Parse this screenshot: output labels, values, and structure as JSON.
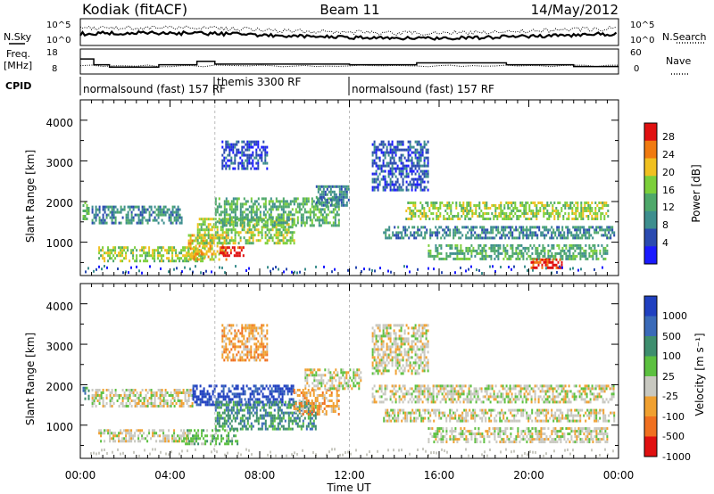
{
  "header": {
    "station": "Kodiak (fitACF)",
    "beam": "Beam 11",
    "date": "14/May/2012"
  },
  "noise_panel": {
    "left_label": "N.Sky",
    "right_label": "N.Search",
    "y_ticks": [
      "10^5",
      "10^0"
    ],
    "y_ticks_right": [
      "10^5",
      "10^0"
    ]
  },
  "freq_panel": {
    "left_label": "Freq.",
    "left_unit": "[MHz]",
    "right_label": "Nave",
    "y_ticks": [
      "18",
      "8"
    ],
    "y_ticks_right": [
      "60",
      "0"
    ]
  },
  "cpid": {
    "label": "CPID",
    "segments": [
      {
        "start_hr": 0.0,
        "end_hr": 6.0,
        "text": "normalsound (fast) 157 RF"
      },
      {
        "start_hr": 6.0,
        "end_hr": 12.0,
        "text": "themis 3300 RF"
      },
      {
        "start_hr": 12.0,
        "end_hr": 24.0,
        "text": "normalsound (fast) 157 RF"
      }
    ]
  },
  "x_axis": {
    "label": "Time UT",
    "ticks": [
      "00:00",
      "04:00",
      "08:00",
      "12:00",
      "16:00",
      "20:00",
      "00:00"
    ]
  },
  "range_panels": {
    "ylabel": "Slant Range [km]",
    "y_ticks": [
      "1000",
      "2000",
      "3000",
      "4000"
    ]
  },
  "colorbars": {
    "power": {
      "label": "Power [dB]",
      "ticks": [
        "4",
        "8",
        "12",
        "16",
        "20",
        "24",
        "28"
      ],
      "colors": [
        "#1a1aff",
        "#2a4ab0",
        "#3d8e8e",
        "#4ea86a",
        "#7ccf3a",
        "#f0c020",
        "#f07a10",
        "#e01010"
      ]
    },
    "velocity": {
      "label": "Velocity [m s⁻¹]",
      "ticks": [
        "1000",
        "500",
        "100",
        "25",
        "-25",
        "-100",
        "-500",
        "-1000"
      ],
      "colors": [
        "#2040c0",
        "#3a6ab8",
        "#3e8e6e",
        "#5cc040",
        "#c8c8c0",
        "#f0a030",
        "#f07020",
        "#e01010"
      ]
    }
  },
  "chart_data": {
    "type": "heatmap",
    "x_unit": "hours UT",
    "xlim": [
      0,
      24
    ],
    "ylim_km": [
      180,
      4500
    ],
    "power_echo_regions": [
      {
        "t0": 0.1,
        "t1": 0.4,
        "r0": 1600,
        "r1": 2000,
        "level": 3
      },
      {
        "t0": 0.5,
        "t1": 4.5,
        "r0": 1500,
        "r1": 1900,
        "level": 2
      },
      {
        "t0": 0.8,
        "t1": 5.5,
        "r0": 550,
        "r1": 900,
        "level": 4
      },
      {
        "t0": 4.8,
        "t1": 6.5,
        "r0": 600,
        "r1": 1200,
        "level": 5
      },
      {
        "t0": 6.2,
        "t1": 7.3,
        "r0": 650,
        "r1": 900,
        "level": 7
      },
      {
        "t0": 5.2,
        "t1": 9.5,
        "r0": 950,
        "r1": 1600,
        "level": 4
      },
      {
        "t0": 6.0,
        "t1": 11.5,
        "r0": 1400,
        "r1": 2100,
        "level": 3
      },
      {
        "t0": 6.3,
        "t1": 8.3,
        "r0": 2800,
        "r1": 3500,
        "level": 1
      },
      {
        "t0": 10.5,
        "t1": 12.0,
        "r0": 1900,
        "r1": 2400,
        "level": 2
      },
      {
        "t0": 13.0,
        "t1": 15.5,
        "r0": 2300,
        "r1": 3500,
        "level": 1
      },
      {
        "t0": 14.5,
        "t1": 23.5,
        "r0": 1600,
        "r1": 2000,
        "level": 4
      },
      {
        "t0": 13.5,
        "t1": 23.8,
        "r0": 1100,
        "r1": 1400,
        "level": 2
      },
      {
        "t0": 15.5,
        "t1": 23.5,
        "r0": 600,
        "r1": 950,
        "level": 3
      },
      {
        "t0": 20.0,
        "t1": 21.5,
        "r0": 350,
        "r1": 600,
        "level": 7
      }
    ],
    "velocity_echo_regions": [
      {
        "t0": 0.1,
        "t1": 0.4,
        "r0": 1650,
        "r1": 1950,
        "bin": 2
      },
      {
        "t0": 0.5,
        "t1": 5.0,
        "r0": 1450,
        "r1": 1900,
        "bin": 4
      },
      {
        "t0": 0.8,
        "t1": 5.0,
        "r0": 600,
        "r1": 900,
        "bin": 4
      },
      {
        "t0": 4.5,
        "t1": 7.0,
        "r0": 550,
        "r1": 900,
        "bin": 3
      },
      {
        "t0": 5.0,
        "t1": 9.5,
        "r0": 1500,
        "r1": 2000,
        "bin": 0
      },
      {
        "t0": 6.0,
        "t1": 10.5,
        "r0": 900,
        "r1": 1600,
        "bin": 2
      },
      {
        "t0": 9.5,
        "t1": 11.5,
        "r0": 1300,
        "r1": 1900,
        "bin": 5
      },
      {
        "t0": 6.3,
        "t1": 8.3,
        "r0": 2600,
        "r1": 3500,
        "bin": 5
      },
      {
        "t0": 10.0,
        "t1": 12.5,
        "r0": 1900,
        "r1": 2400,
        "bin": 4
      },
      {
        "t0": 13.0,
        "t1": 15.5,
        "r0": 2300,
        "r1": 3500,
        "bin": 4
      },
      {
        "t0": 13.0,
        "t1": 23.8,
        "r0": 1600,
        "r1": 2000,
        "bin": 4
      },
      {
        "t0": 13.5,
        "t1": 23.8,
        "r0": 1100,
        "r1": 1400,
        "bin": 4
      },
      {
        "t0": 15.5,
        "t1": 23.5,
        "r0": 600,
        "r1": 950,
        "bin": 4
      }
    ],
    "freq_mhz": [
      {
        "t0": 0.0,
        "t1": 0.6,
        "v": 14.5
      },
      {
        "t0": 0.6,
        "t1": 1.3,
        "v": 12.0
      },
      {
        "t0": 1.3,
        "t1": 3.5,
        "v": 11.0
      },
      {
        "t0": 3.5,
        "t1": 5.2,
        "v": 12.0
      },
      {
        "t0": 5.2,
        "t1": 6.0,
        "v": 13.5
      },
      {
        "t0": 6.0,
        "t1": 12.0,
        "v": 12.3
      },
      {
        "t0": 12.0,
        "t1": 15.0,
        "v": 12.0
      },
      {
        "t0": 15.0,
        "t1": 19.0,
        "v": 12.8
      },
      {
        "t0": 19.0,
        "t1": 22.0,
        "v": 12.0
      },
      {
        "t0": 22.0,
        "t1": 24.0,
        "v": 11.2
      }
    ]
  }
}
